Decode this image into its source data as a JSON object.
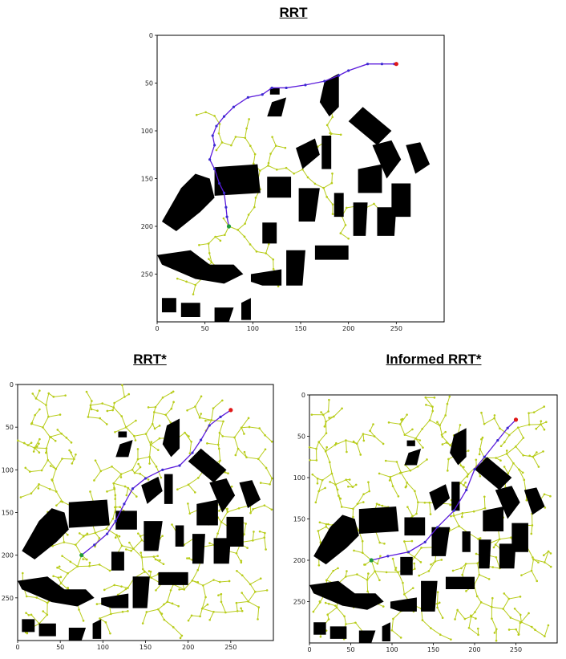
{
  "panels": [
    {
      "id": "rrt",
      "title": "RRT",
      "x_ticks": [
        "0",
        "50",
        "100",
        "150",
        "200",
        "250"
      ],
      "y_ticks": [
        "0",
        "50",
        "100",
        "150",
        "200",
        "250"
      ],
      "tree_density": "sparse",
      "path": [
        [
          75,
          200
        ],
        [
          73,
          190
        ],
        [
          72,
          180
        ],
        [
          70,
          165
        ],
        [
          65,
          155
        ],
        [
          60,
          140
        ],
        [
          55,
          130
        ],
        [
          60,
          115
        ],
        [
          58,
          105
        ],
        [
          62,
          95
        ],
        [
          70,
          85
        ],
        [
          80,
          75
        ],
        [
          95,
          65
        ],
        [
          110,
          62
        ],
        [
          120,
          55
        ],
        [
          135,
          55
        ],
        [
          155,
          52
        ],
        [
          175,
          48
        ],
        [
          190,
          42
        ],
        [
          200,
          37
        ],
        [
          220,
          30
        ],
        [
          235,
          30
        ],
        [
          248,
          30
        ],
        [
          250,
          30
        ]
      ]
    },
    {
      "id": "rrt-star",
      "title": "RRT*",
      "x_ticks": [
        "0",
        "50",
        "100",
        "150",
        "200",
        "250"
      ],
      "y_ticks": [
        "0",
        "50",
        "100",
        "150",
        "200",
        "250"
      ],
      "tree_density": "dense",
      "path": [
        [
          75,
          200
        ],
        [
          90,
          188
        ],
        [
          105,
          175
        ],
        [
          115,
          160
        ],
        [
          125,
          140
        ],
        [
          135,
          122
        ],
        [
          150,
          110
        ],
        [
          170,
          100
        ],
        [
          190,
          95
        ],
        [
          205,
          80
        ],
        [
          215,
          65
        ],
        [
          225,
          48
        ],
        [
          238,
          38
        ],
        [
          250,
          30
        ]
      ]
    },
    {
      "id": "informed-rrt-star",
      "title": "Informed RRT*",
      "x_ticks": [
        "0",
        "50",
        "100",
        "150",
        "200",
        "250"
      ],
      "y_ticks": [
        "0",
        "50",
        "100",
        "150",
        "200",
        "250"
      ],
      "tree_density": "dense",
      "path": [
        [
          75,
          200
        ],
        [
          95,
          195
        ],
        [
          120,
          190
        ],
        [
          140,
          178
        ],
        [
          155,
          160
        ],
        [
          175,
          140
        ],
        [
          190,
          115
        ],
        [
          200,
          90
        ],
        [
          212,
          75
        ],
        [
          228,
          55
        ],
        [
          240,
          40
        ],
        [
          250,
          30
        ]
      ]
    }
  ],
  "start": [
    75,
    200
  ],
  "goal": [
    250,
    30
  ],
  "colors": {
    "tree": "#b8cc1a",
    "path": "#5b1bdc",
    "path_node": "#3b2bd0",
    "start": "#1f9a3a",
    "goal": "#e01818",
    "obstacle": "#000000"
  }
}
